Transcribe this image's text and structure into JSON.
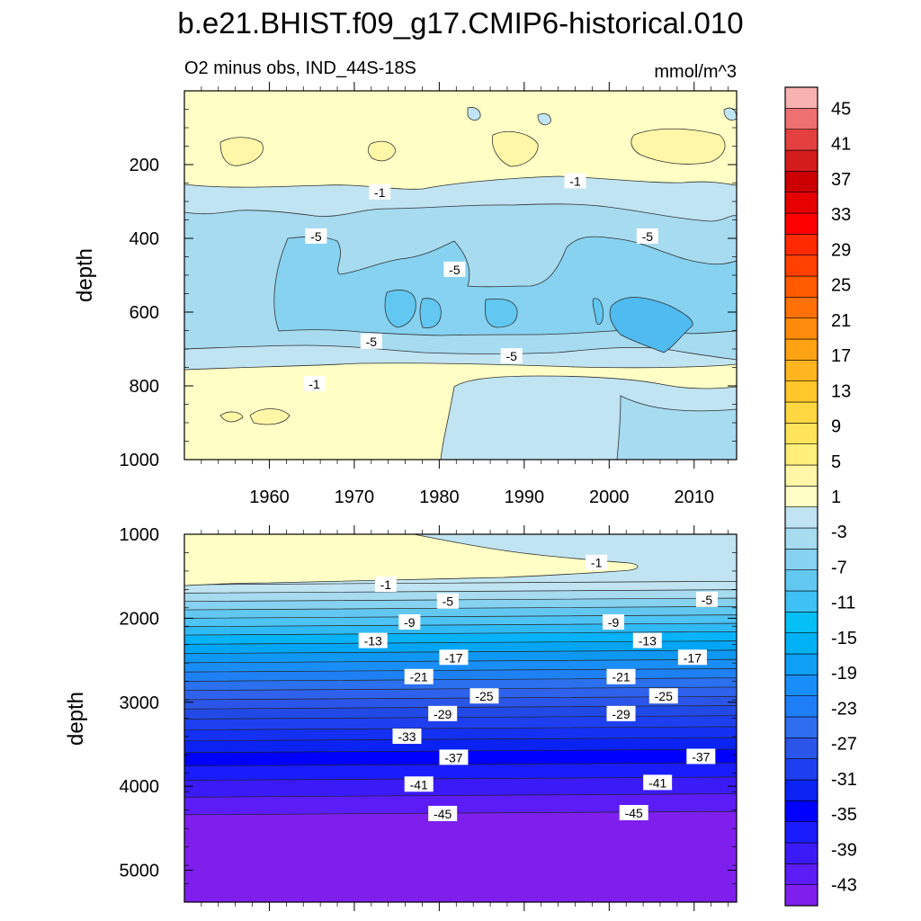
{
  "title": "b.e21.BHIST.f09_g17.CMIP6-historical.010",
  "subtitle_left": "O2 minus obs, IND_44S-18S",
  "subtitle_right": "mmol/m^3",
  "chart_data": [
    {
      "type": "heatmap",
      "panel": "upper",
      "ylabel": "depth",
      "xlim": [
        1950,
        2015
      ],
      "ylim": [
        1000,
        0
      ],
      "x_ticks": [
        1960,
        1970,
        1980,
        1990,
        2000,
        2010
      ],
      "x_tick_labels": [
        "1960",
        "1970",
        "1980",
        "1990",
        "2000",
        "2010"
      ],
      "y_ticks": [
        200,
        400,
        600,
        800,
        1000
      ],
      "y_tick_labels": [
        "200",
        "400",
        "600",
        "800",
        "1000"
      ],
      "bands": [
        {
          "from": 0,
          "to": 250,
          "level": 1
        },
        {
          "from": 250,
          "to": 330,
          "level": -1
        },
        {
          "from": 330,
          "to": 700,
          "level": -3
        },
        {
          "from": 700,
          "to": 760,
          "level": -1
        },
        {
          "from": 760,
          "to": 1000,
          "level": 1
        }
      ],
      "contour_labels": [
        {
          "text": "-1",
          "x": 1973,
          "y": 275
        },
        {
          "text": "-1",
          "x": 1996,
          "y": 245
        },
        {
          "text": "-5",
          "x": 1965.5,
          "y": 395
        },
        {
          "text": "-5",
          "x": 2004.5,
          "y": 395
        },
        {
          "text": "-5",
          "x": 1981.8,
          "y": 485
        },
        {
          "text": "-5",
          "x": 1972,
          "y": 680
        },
        {
          "text": "-5",
          "x": 1988.5,
          "y": 720
        },
        {
          "text": "-1",
          "x": 1965.3,
          "y": 795
        }
      ]
    },
    {
      "type": "heatmap",
      "panel": "lower",
      "ylabel": "depth",
      "xlim": [
        1950,
        2015
      ],
      "ylim": [
        5380,
        1000
      ],
      "y_ticks": [
        1000,
        2000,
        3000,
        4000,
        5000
      ],
      "y_tick_labels": [
        "1000",
        "2000",
        "3000",
        "4000",
        "5000"
      ],
      "levels": [
        -1,
        -3,
        -5,
        -7,
        -9,
        -11,
        -13,
        -15,
        -17,
        -19,
        -21,
        -23,
        -25,
        -27,
        -29,
        -31,
        -33,
        -35,
        -37,
        -39,
        -41,
        -43,
        -45
      ],
      "contour_labels": [
        {
          "text": "-1",
          "x": 1998.5,
          "y": 1340
        },
        {
          "text": "-1",
          "x": 1973.7,
          "y": 1600
        },
        {
          "text": "-5",
          "x": 1981,
          "y": 1800
        },
        {
          "text": "-5",
          "x": 2011.5,
          "y": 1780
        },
        {
          "text": "-9",
          "x": 1976.5,
          "y": 2050
        },
        {
          "text": "-9",
          "x": 2000.5,
          "y": 2050
        },
        {
          "text": "-13",
          "x": 1972.2,
          "y": 2270
        },
        {
          "text": "-13",
          "x": 2004.5,
          "y": 2270
        },
        {
          "text": "-17",
          "x": 1981.7,
          "y": 2470
        },
        {
          "text": "-17",
          "x": 2009.8,
          "y": 2470
        },
        {
          "text": "-21",
          "x": 1977.6,
          "y": 2700
        },
        {
          "text": "-21",
          "x": 2001.4,
          "y": 2700
        },
        {
          "text": "-25",
          "x": 1985.3,
          "y": 2930
        },
        {
          "text": "-25",
          "x": 2006.4,
          "y": 2930
        },
        {
          "text": "-29",
          "x": 1980.4,
          "y": 3140
        },
        {
          "text": "-29",
          "x": 2001.4,
          "y": 3140
        },
        {
          "text": "-33",
          "x": 1976.2,
          "y": 3410
        },
        {
          "text": "-37",
          "x": 1981.7,
          "y": 3660
        },
        {
          "text": "-37",
          "x": 2010.8,
          "y": 3650
        },
        {
          "text": "-41",
          "x": 1977.6,
          "y": 3980
        },
        {
          "text": "-41",
          "x": 2005.7,
          "y": 3960
        },
        {
          "text": "-45",
          "x": 1980.4,
          "y": 4330
        },
        {
          "text": "-45",
          "x": 2002.9,
          "y": 4320
        }
      ]
    }
  ],
  "colorbar": {
    "colors": [
      "#7f1fee",
      "#5c1cf5",
      "#3b1af8",
      "#1a1cfb",
      "#0000ff",
      "#0a22f2",
      "#1e3ff0",
      "#2a55e8",
      "#2f6df0",
      "#1e7ef8",
      "#1a8ef8",
      "#0fa0f5",
      "#00b2f5",
      "#06bff5",
      "#3fc1f5",
      "#62c8f2",
      "#86d2f0",
      "#a6dbf0",
      "#c0e4f2",
      "#ffffc5",
      "#fff7a7",
      "#ffee7a",
      "#ffe45a",
      "#ffd740",
      "#ffc72a",
      "#ffb520",
      "#ffa213",
      "#ff8a0c",
      "#ff7007",
      "#ff5a00",
      "#ff4000",
      "#ff2a00",
      "#ff0000",
      "#e60000",
      "#cc0000",
      "#d41c1c",
      "#e44040",
      "#ef7070",
      "#f8b2b2"
    ],
    "labels": [
      "45",
      "41",
      "37",
      "33",
      "29",
      "25",
      "21",
      "17",
      "13",
      "9",
      "5",
      "1",
      "-3",
      "-7",
      "-11",
      "-15",
      "-19",
      "-23",
      "-27",
      "-31",
      "-35",
      "-39",
      "-43"
    ]
  },
  "colors": {
    "pos1": "#ffffc5",
    "pos5": "#fff7a7",
    "neg1": "#c0e4f2",
    "neg5": "#a6dbf0",
    "neg9": "#86d2f0",
    "neg11": "#62c8f2"
  }
}
